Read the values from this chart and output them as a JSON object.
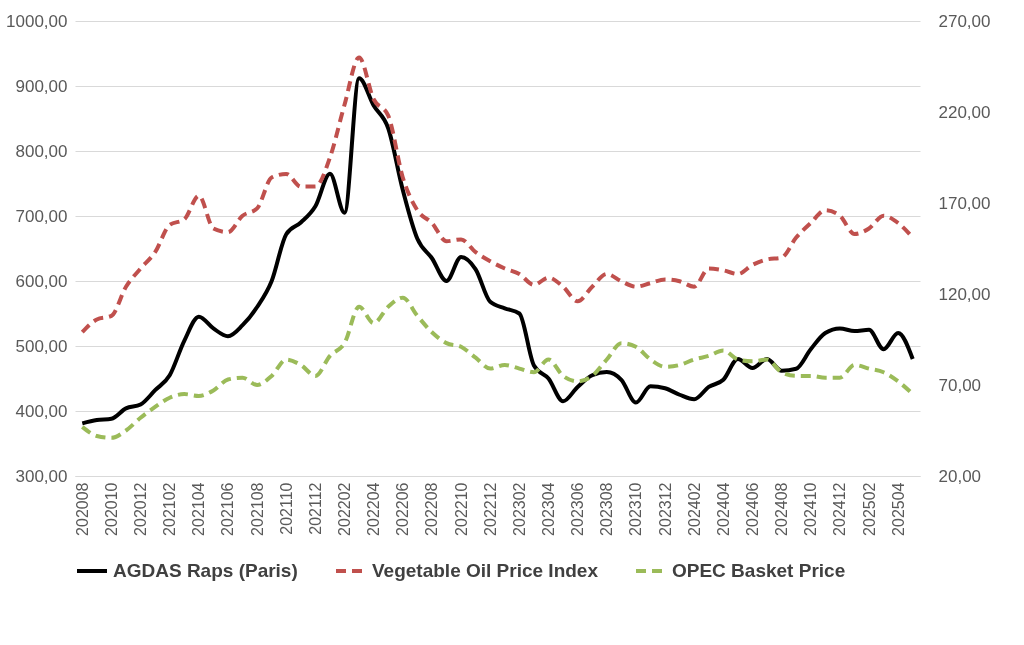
{
  "chart_data": {
    "type": "line",
    "categories": [
      "202008",
      null,
      "202010",
      null,
      "202012",
      null,
      "202102",
      null,
      "202104",
      null,
      "202106",
      null,
      "202108",
      null,
      "202110",
      null,
      "202112",
      null,
      "202202",
      null,
      "202204",
      null,
      "202206",
      null,
      "202208",
      null,
      "202210",
      null,
      "202212",
      null,
      "202302",
      null,
      "202304",
      null,
      "202306",
      null,
      "202308",
      null,
      "202310",
      null,
      "202312",
      null,
      "202402",
      null,
      "202404",
      null,
      "202406",
      null,
      "202408",
      null,
      "202410",
      null,
      "202412",
      null,
      "202502",
      null,
      "202504",
      null
    ],
    "series": [
      {
        "name": "AGDAS Raps (Paris)",
        "color": "#000000",
        "line_style": "solid",
        "values": [
          381,
          386,
          388,
          404,
          410,
          432,
          455,
          508,
          545,
          527,
          515,
          532,
          560,
          600,
          672,
          690,
          715,
          765,
          705,
          912,
          870,
          835,
          740,
          665,
          635,
          600,
          637,
          618,
          568,
          558,
          550,
          470,
          450,
          415,
          437,
          455,
          460,
          448,
          413,
          438,
          435,
          425,
          418,
          437,
          448,
          480,
          466,
          480,
          462,
          465,
          495,
          520,
          527,
          523,
          525,
          495,
          520,
          480
        ]
      },
      {
        "name": "Vegetable Oil Price Index",
        "color": "#c0504d",
        "line_style": "dashed",
        "axis": "y2",
        "values": [
          99,
          106,
          108,
          124,
          134,
          143,
          158,
          161,
          174,
          156,
          154,
          163,
          167,
          184,
          186,
          179,
          179,
          195,
          224,
          250,
          227,
          218,
          184,
          166,
          159,
          149,
          150,
          143,
          138,
          134,
          131,
          125,
          129,
          124,
          116,
          124,
          131,
          127,
          124,
          126,
          128,
          127,
          124,
          134,
          133,
          131,
          136,
          139,
          140,
          151,
          159,
          166,
          163,
          153,
          156,
          163,
          159,
          151
        ]
      },
      {
        "name": "OPEC Basket Price",
        "color": "#9bbb59",
        "line_style": "dashed",
        "axis": "y2",
        "values": [
          47,
          42,
          41,
          45,
          52,
          58,
          63,
          65,
          64,
          67,
          73,
          74,
          70,
          75,
          84,
          81,
          75,
          86,
          93,
          113,
          104,
          113,
          118,
          108,
          99,
          93,
          91,
          85,
          79,
          81,
          79,
          77,
          84,
          75,
          72,
          75,
          84,
          93,
          91,
          84,
          80,
          81,
          84,
          86,
          89,
          84,
          83,
          84,
          77,
          75,
          75,
          74,
          74,
          81,
          79,
          77,
          72,
          65
        ]
      }
    ],
    "ylim": [
      300,
      1000
    ],
    "yticks": [
      {
        "value": 300,
        "label": "300,00"
      },
      {
        "value": 400,
        "label": "400,00"
      },
      {
        "value": 500,
        "label": "500,00"
      },
      {
        "value": 600,
        "label": "600,00"
      },
      {
        "value": 700,
        "label": "700,00"
      },
      {
        "value": 800,
        "label": "800,00"
      },
      {
        "value": 900,
        "label": "900,00"
      },
      {
        "value": 1000,
        "label": "1000,00"
      }
    ],
    "y2lim": [
      20,
      270
    ],
    "y2ticks": [
      {
        "value": 20,
        "label": "20,00"
      },
      {
        "value": 70,
        "label": "70,00"
      },
      {
        "value": 120,
        "label": "120,00"
      },
      {
        "value": 170,
        "label": "170,00"
      },
      {
        "value": 220,
        "label": "220,00"
      },
      {
        "value": 270,
        "label": "270,00"
      }
    ],
    "grid": "y",
    "legend": "bottom"
  }
}
